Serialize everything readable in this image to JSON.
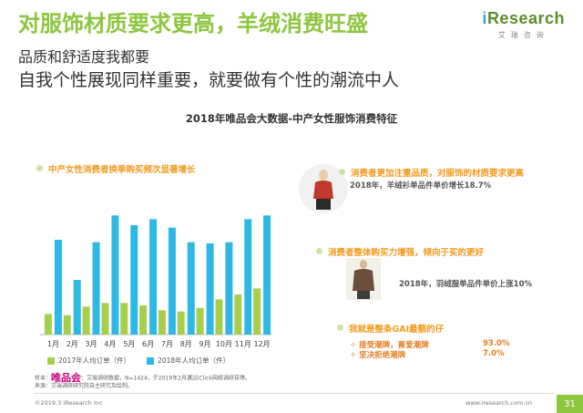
{
  "header": {
    "title": "对服饰材质要求更高，羊绒消费旺盛",
    "subtitle_line1": "品质和舒适度我都要",
    "subtitle_line2": "自我个性展现同样重要，就要做有个性的潮流中人",
    "logo_brand_i": "i",
    "logo_brand_rest": "Research",
    "logo_cn": "艾瑞咨询"
  },
  "main_title": "2018年唯品会大数据-中产女性服饰消费特征",
  "left_panel": {
    "heading": "中产女性消费者换季购买频次显著增长"
  },
  "chart_data": {
    "type": "bar",
    "categories": [
      "1月",
      "2月",
      "3月",
      "4月",
      "5月",
      "6月",
      "7月",
      "8月",
      "9月",
      "10月",
      "11月",
      "12月"
    ],
    "series": [
      {
        "name": "2017年人均订单（件）",
        "values": [
          1.7,
          1.6,
          2.3,
          2.6,
          2.6,
          2.4,
          2.0,
          1.9,
          2.2,
          2.9,
          3.3,
          3.8
        ],
        "color": "#a7cf4d"
      },
      {
        "name": "2018年人均订单（件）",
        "values": [
          7.8,
          4.5,
          7.6,
          9.8,
          9.0,
          9.5,
          8.8,
          7.6,
          7.5,
          7.6,
          9.5,
          9.8
        ],
        "color": "#2eb8e6"
      }
    ],
    "ylim": [
      0,
      10.5
    ],
    "grid": false,
    "legend": "bottom"
  },
  "right_panel": {
    "item1_heading": "消费者更加注重品质，对服饰的材质要求更高",
    "item1_text": "2018年，羊绒衫单品件单价增长18.7%",
    "item2_heading": "消费者整体购买力增强，倾向于买的更好",
    "item2_text": "2018年，羽绒服单品件单价上涨10%",
    "item3_heading": "我就是整条GAI最靓的仔",
    "rows": [
      {
        "label": "接受潮牌，喜爱潮牌",
        "value": "93.0%"
      },
      {
        "label": "坚决拒绝潮牌",
        "value": "7.0%"
      }
    ],
    "diamond": "✧"
  },
  "source": {
    "label": "样本：",
    "vip": "唯品会",
    "line1": "：艾瑞调研数据，N=1424，于2019年2月通过iClick网络调研获得。",
    "line2": "来源：艾瑞调研研究院自主研究及绘制。"
  },
  "footer": {
    "copyright": "©2019.3 iResearch Inc",
    "website": "www.iresearch.com.cn",
    "page": "31"
  },
  "colors": {
    "accent": "#8dc63f",
    "orange": "#f39a1e",
    "bar2017": "#a7cf4d",
    "bar2018": "#2eb8e6"
  }
}
